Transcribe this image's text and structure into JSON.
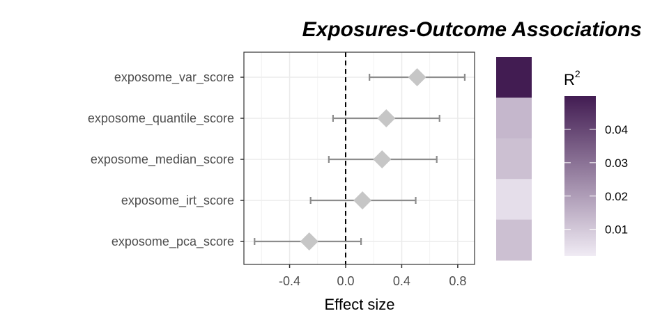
{
  "chart_data": {
    "type": "forest",
    "title": "Exposures-Outcome Associations",
    "xlabel": "Effect size",
    "ylabel": "",
    "xlim": [
      -0.726,
      0.92
    ],
    "xticks": [
      -0.4,
      0.0,
      0.4,
      0.8
    ],
    "xtick_labels": [
      "-0.4",
      "0.0",
      "0.4",
      "0.8"
    ],
    "reference_line": 0,
    "grid": true,
    "categories": [
      "exposome_var_score",
      "exposome_quantile_score",
      "exposome_median_score",
      "exposome_irt_score",
      "exposome_pca_score"
    ],
    "estimate": [
      0.51,
      0.29,
      0.26,
      0.12,
      -0.26
    ],
    "ci_low": [
      0.17,
      -0.09,
      -0.12,
      -0.25,
      -0.65
    ],
    "ci_high": [
      0.85,
      0.67,
      0.65,
      0.5,
      0.11
    ],
    "r2": [
      0.05,
      0.014,
      0.012,
      0.005,
      0.012
    ],
    "legend": {
      "title": "R",
      "title_superscript": "2",
      "range": [
        0.002,
        0.05
      ],
      "ticks": [
        0.01,
        0.02,
        0.03,
        0.04
      ],
      "tick_labels": [
        "0.01",
        "0.02",
        "0.03",
        "0.04"
      ],
      "low_color": "#f0ebf4",
      "high_color": "#421c52",
      "placement": "right"
    },
    "point_color": "#c6c6c6",
    "errorbar_color": "#8c8c8c"
  }
}
